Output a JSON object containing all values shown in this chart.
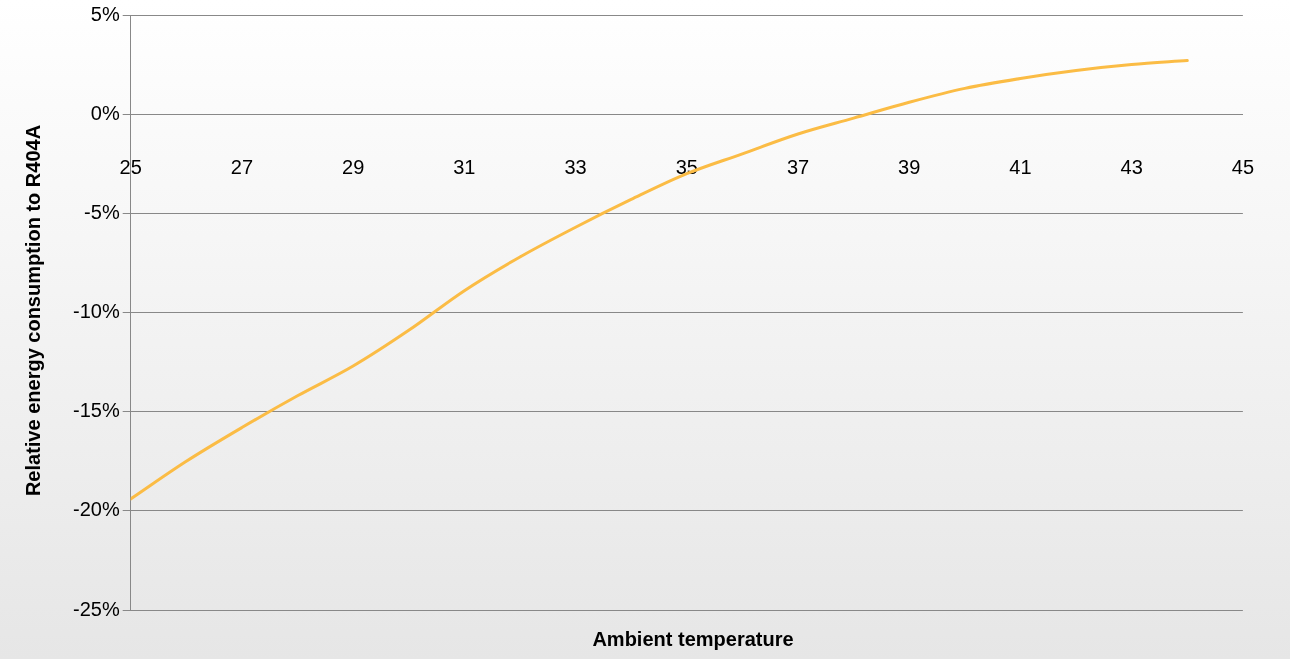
{
  "chart_data": {
    "type": "line",
    "xlabel": "Ambient temperature",
    "ylabel": "Relative energy consumption to R404A",
    "x": [
      25,
      26,
      27,
      28,
      29,
      30,
      31,
      32,
      33,
      34,
      35,
      36,
      37,
      38,
      39,
      40,
      41,
      42,
      43,
      44
    ],
    "series": [
      {
        "color": "#fbbc45",
        "values": [
          -19.4,
          -17.5,
          -15.8,
          -14.2,
          -12.7,
          -10.9,
          -8.9,
          -7.2,
          -5.7,
          -4.3,
          -3.0,
          -2.0,
          -1.0,
          -0.2,
          0.6,
          1.3,
          1.8,
          2.2,
          2.5,
          2.7
        ]
      }
    ],
    "xlim": [
      25,
      45
    ],
    "xticks": [
      25,
      27,
      29,
      31,
      33,
      35,
      37,
      39,
      41,
      43,
      45
    ],
    "ylim": [
      -25,
      5
    ],
    "yticks": [
      {
        "value": -25,
        "label": "-25%"
      },
      {
        "value": -20,
        "label": "-20%"
      },
      {
        "value": -15,
        "label": "-15%"
      },
      {
        "value": -10,
        "label": "-10%"
      },
      {
        "value": -5,
        "label": "-5%"
      },
      {
        "value": 0,
        "label": "0%"
      },
      {
        "value": 5,
        "label": "5%"
      }
    ],
    "grid": "y",
    "legend": false,
    "marker": "none",
    "line_style": "solid"
  }
}
